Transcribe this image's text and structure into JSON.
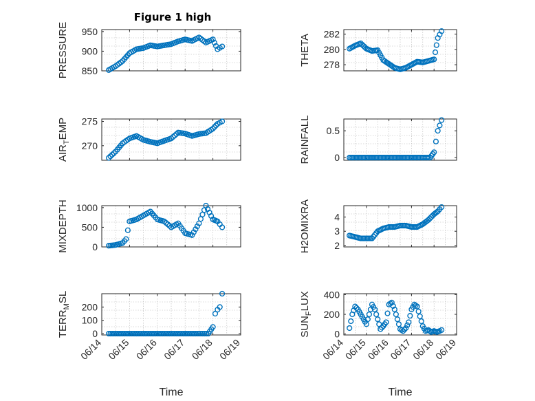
{
  "figure": {
    "title": "Figure 1 high",
    "marker_color": "#0072bd",
    "marker": "circle"
  },
  "chart_data": [
    {
      "id": "pressure",
      "type": "scatter",
      "title": "Figure 1 high",
      "ylabel": "PRESSURE",
      "xlabel": "",
      "xlim": [
        "06/14",
        "06/19"
      ],
      "xticks": [],
      "ylim": [
        850,
        955
      ],
      "yticks": [
        850,
        900,
        950
      ],
      "grid": true,
      "x": [
        "06/14 06:00",
        "06/14 12:00",
        "06/14 18:00",
        "06/15 00:00",
        "06/15 06:00",
        "06/15 12:00",
        "06/15 18:00",
        "06/16 00:00",
        "06/16 06:00",
        "06/16 12:00",
        "06/16 18:00",
        "06/17 00:00",
        "06/17 06:00",
        "06/17 12:00",
        "06/17 18:00",
        "06/18 00:00",
        "06/18 04:00",
        "06/18 08:00"
      ],
      "y": [
        852,
        862,
        875,
        895,
        905,
        908,
        915,
        912,
        915,
        918,
        925,
        930,
        926,
        935,
        922,
        930,
        905,
        912
      ]
    },
    {
      "id": "theta",
      "type": "scatter",
      "ylabel": "THETA",
      "xlabel": "",
      "xlim": [
        "06/14",
        "06/19"
      ],
      "xticks": [],
      "ylim": [
        277.2,
        282.6
      ],
      "yticks": [
        278,
        280,
        282
      ],
      "grid": true,
      "x": [
        "06/14 06:00",
        "06/14 12:00",
        "06/14 18:00",
        "06/15 00:00",
        "06/15 06:00",
        "06/15 12:00",
        "06/15 18:00",
        "06/16 00:00",
        "06/16 06:00",
        "06/16 12:00",
        "06/16 18:00",
        "06/17 00:00",
        "06/17 06:00",
        "06/17 12:00",
        "06/17 18:00",
        "06/18 00:00",
        "06/18 04:00",
        "06/18 08:00"
      ],
      "y": [
        280.1,
        280.5,
        280.8,
        280.1,
        279.8,
        279.9,
        278.6,
        278.1,
        277.6,
        277.4,
        277.6,
        278.0,
        278.4,
        278.3,
        278.5,
        278.7,
        281.5,
        282.4
      ]
    },
    {
      "id": "air_temp",
      "type": "scatter",
      "ylabel": "AIR_TEMP",
      "ylabel_main": "AIR",
      "ylabel_sub": "T",
      "ylabel_tail": "EMP",
      "xlabel": "",
      "xlim": [
        "06/14",
        "06/19"
      ],
      "xticks": [],
      "ylim": [
        267,
        275.5
      ],
      "yticks": [
        270,
        275
      ],
      "grid": true,
      "x": [
        "06/14 06:00",
        "06/14 12:00",
        "06/14 18:00",
        "06/15 00:00",
        "06/15 06:00",
        "06/15 12:00",
        "06/15 18:00",
        "06/16 00:00",
        "06/16 06:00",
        "06/16 12:00",
        "06/16 18:00",
        "06/17 00:00",
        "06/17 06:00",
        "06/17 12:00",
        "06/17 18:00",
        "06/18 00:00",
        "06/18 04:00",
        "06/18 08:00"
      ],
      "y": [
        267.5,
        268.8,
        270.5,
        271.5,
        272.0,
        271.2,
        270.8,
        270.5,
        271.0,
        271.5,
        272.7,
        272.5,
        272.0,
        272.4,
        272.6,
        273.5,
        274.5,
        275.0
      ]
    },
    {
      "id": "rainfall",
      "type": "scatter",
      "ylabel": "RAINFALL",
      "xlabel": "",
      "xlim": [
        "06/14",
        "06/19"
      ],
      "xticks": [],
      "ylim": [
        -0.05,
        0.72
      ],
      "yticks": [
        0,
        0.5
      ],
      "ytick_labels": [
        "0",
        "0.5"
      ],
      "grid": true,
      "x": [
        "06/14 06:00",
        "06/14 12:00",
        "06/15 00:00",
        "06/15 12:00",
        "06/16 00:00",
        "06/16 12:00",
        "06/17 00:00",
        "06/17 12:00",
        "06/17 20:00",
        "06/18 00:00",
        "06/18 02:00",
        "06/18 04:00",
        "06/18 06:00",
        "06/18 08:00"
      ],
      "y": [
        0,
        0,
        0,
        0,
        0,
        0,
        0,
        0,
        0,
        0.1,
        0.3,
        0.5,
        0.6,
        0.7
      ]
    },
    {
      "id": "mixdepth",
      "type": "scatter",
      "ylabel": "MIXDEPTH",
      "xlabel": "",
      "xlim": [
        "06/14",
        "06/19"
      ],
      "xticks": [],
      "ylim": [
        0,
        1050
      ],
      "yticks": [
        0,
        500,
        1000
      ],
      "grid": true,
      "x": [
        "06/14 06:00",
        "06/14 12:00",
        "06/14 18:00",
        "06/14 21:00",
        "06/15 00:00",
        "06/15 06:00",
        "06/15 12:00",
        "06/15 18:00",
        "06/16 00:00",
        "06/16 06:00",
        "06/16 12:00",
        "06/16 18:00",
        "06/17 00:00",
        "06/17 06:00",
        "06/17 12:00",
        "06/17 18:00",
        "06/18 00:00",
        "06/18 04:00",
        "06/18 08:00"
      ],
      "y": [
        30,
        50,
        100,
        200,
        650,
        700,
        800,
        900,
        700,
        650,
        500,
        600,
        350,
        300,
        600,
        1050,
        700,
        650,
        500
      ]
    },
    {
      "id": "h2omixra",
      "type": "scatter",
      "ylabel": "H2OMIXRA",
      "xlabel": "",
      "xlim": [
        "06/14",
        "06/19"
      ],
      "xticks": [],
      "ylim": [
        1.9,
        4.8
      ],
      "yticks": [
        2,
        3,
        4
      ],
      "grid": true,
      "x": [
        "06/14 06:00",
        "06/14 12:00",
        "06/14 18:00",
        "06/15 00:00",
        "06/15 06:00",
        "06/15 12:00",
        "06/15 18:00",
        "06/16 00:00",
        "06/16 06:00",
        "06/16 12:00",
        "06/16 18:00",
        "06/17 00:00",
        "06/17 06:00",
        "06/17 12:00",
        "06/17 18:00",
        "06/18 00:00",
        "06/18 04:00",
        "06/18 08:00"
      ],
      "y": [
        2.7,
        2.6,
        2.5,
        2.5,
        2.5,
        3.0,
        3.2,
        3.3,
        3.3,
        3.4,
        3.4,
        3.3,
        3.3,
        3.5,
        3.8,
        4.2,
        4.4,
        4.7
      ]
    },
    {
      "id": "terr_msl",
      "type": "scatter",
      "ylabel": "TERR_MSL",
      "ylabel_main": "TERR",
      "ylabel_sub": "M",
      "ylabel_tail": "SL",
      "xlabel": "Time",
      "xlim": [
        "06/14",
        "06/19"
      ],
      "xticks": [
        "06/14",
        "06/15",
        "06/16",
        "06/17",
        "06/18",
        "06/19"
      ],
      "ylim": [
        -10,
        300
      ],
      "yticks": [
        0,
        100,
        200
      ],
      "grid": true,
      "x": [
        "06/14 06:00",
        "06/14 12:00",
        "06/15 00:00",
        "06/15 12:00",
        "06/16 00:00",
        "06/16 12:00",
        "06/17 00:00",
        "06/17 12:00",
        "06/17 20:00",
        "06/18 00:00",
        "06/18 02:00",
        "06/18 04:00",
        "06/18 06:00",
        "06/18 08:00"
      ],
      "y": [
        0,
        0,
        0,
        0,
        0,
        0,
        0,
        0,
        0,
        50,
        150,
        180,
        200,
        300
      ]
    },
    {
      "id": "sun_flux",
      "type": "scatter",
      "ylabel": "SUN_FLUX",
      "ylabel_main": "SUN",
      "ylabel_sub": "F",
      "ylabel_tail": "LUX",
      "xlabel": "Time",
      "xlim": [
        "06/14",
        "06/19"
      ],
      "xticks": [
        "06/14",
        "06/15",
        "06/16",
        "06/17",
        "06/18",
        "06/19"
      ],
      "ylim": [
        -10,
        410
      ],
      "yticks": [
        0,
        200,
        400
      ],
      "grid": true,
      "x": [
        "06/14 06:00",
        "06/14 09:00",
        "06/14 12:00",
        "06/14 15:00",
        "06/14 18:00",
        "06/14 21:00",
        "06/15 00:00",
        "06/15 03:00",
        "06/15 06:00",
        "06/15 09:00",
        "06/15 12:00",
        "06/15 15:00",
        "06/15 18:00",
        "06/15 21:00",
        "06/16 00:00",
        "06/16 03:00",
        "06/16 06:00",
        "06/16 09:00",
        "06/16 12:00",
        "06/16 15:00",
        "06/16 18:00",
        "06/16 21:00",
        "06/17 00:00",
        "06/17 03:00",
        "06/17 06:00",
        "06/17 09:00",
        "06/17 12:00",
        "06/17 15:00",
        "06/17 18:00",
        "06/17 21:00",
        "06/18 00:00",
        "06/18 03:00",
        "06/18 06:00",
        "06/18 08:00"
      ],
      "y": [
        60,
        200,
        280,
        250,
        200,
        150,
        100,
        200,
        300,
        250,
        150,
        50,
        80,
        120,
        300,
        320,
        250,
        150,
        50,
        30,
        60,
        120,
        250,
        300,
        280,
        180,
        80,
        30,
        40,
        20,
        30,
        20,
        30,
        40
      ]
    }
  ]
}
